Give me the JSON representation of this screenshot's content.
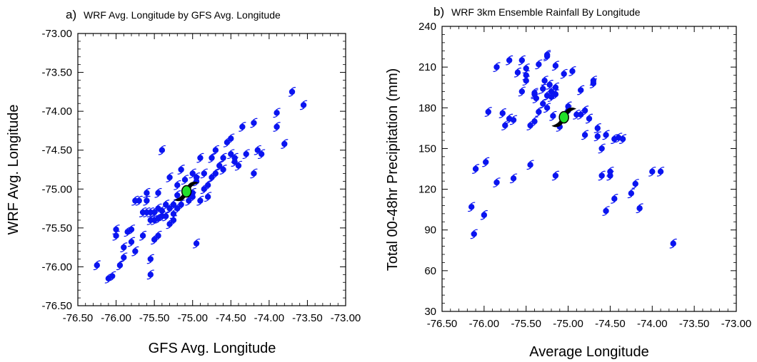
{
  "chart_data": [
    {
      "type": "scatter",
      "panel_label": "a)",
      "title": "WRF Avg. Longitude by GFS Avg. Longitude",
      "xlabel": "GFS Avg. Longitude",
      "ylabel": "WRF Avg. Longitude",
      "xlim": [
        -76.5,
        -73.0
      ],
      "ylim": [
        -76.5,
        -73.0
      ],
      "xticks": [
        "-76.50",
        "-76.00",
        "-75.50",
        "-75.00",
        "-74.50",
        "-74.00",
        "-73.50",
        "-73.00"
      ],
      "yticks": [
        "-76.50",
        "-76.00",
        "-75.50",
        "-75.00",
        "-74.50",
        "-74.00",
        "-73.50",
        "-73.00"
      ],
      "marker_color": "#0a14f0",
      "highlight": {
        "x": -75.08,
        "y": -75.03,
        "color": "#22e02a"
      },
      "x": [
        -76.25,
        -76.1,
        -76.05,
        -76.0,
        -76.0,
        -75.95,
        -75.9,
        -75.9,
        -75.85,
        -75.8,
        -75.8,
        -75.75,
        -75.75,
        -75.7,
        -75.65,
        -75.6,
        -75.6,
        -75.55,
        -75.55,
        -75.55,
        -75.5,
        -75.5,
        -75.5,
        -75.45,
        -75.45,
        -75.45,
        -75.4,
        -75.4,
        -75.4,
        -75.35,
        -75.3,
        -75.3,
        -75.3,
        -75.25,
        -75.25,
        -75.2,
        -75.2,
        -75.2,
        -75.15,
        -75.1,
        -75.05,
        -75.0,
        -75.0,
        -74.95,
        -74.95,
        -74.9,
        -74.9,
        -74.85,
        -74.85,
        -74.8,
        -74.8,
        -74.75,
        -74.75,
        -74.7,
        -74.7,
        -74.65,
        -74.6,
        -74.6,
        -74.55,
        -74.5,
        -74.5,
        -74.45,
        -74.45,
        -74.4,
        -74.35,
        -74.3,
        -74.2,
        -74.2,
        -74.15,
        -74.1,
        -73.9,
        -73.9,
        -73.8,
        -73.7,
        -73.55,
        -75.6,
        -75.35,
        -75.0,
        -74.95,
        -75.15,
        -75.55,
        -75.45,
        -75.65,
        -75.25
      ],
      "y": [
        -75.98,
        -76.15,
        -76.12,
        -75.6,
        -75.52,
        -75.98,
        -75.88,
        -75.75,
        -75.55,
        -75.68,
        -75.52,
        -75.15,
        -75.8,
        -75.15,
        -75.3,
        -75.15,
        -75.3,
        -75.4,
        -75.3,
        -76.1,
        -75.3,
        -75.4,
        -75.65,
        -75.25,
        -75.38,
        -75.6,
        -75.28,
        -75.35,
        -74.5,
        -75.35,
        -75.45,
        -75.25,
        -74.85,
        -75.2,
        -75.32,
        -75.08,
        -74.95,
        -75.25,
        -75.2,
        -74.88,
        -75.15,
        -74.8,
        -75.05,
        -74.85,
        -75.7,
        -74.6,
        -75.15,
        -75.0,
        -74.8,
        -74.95,
        -75.1,
        -74.85,
        -74.6,
        -74.5,
        -74.8,
        -74.7,
        -74.6,
        -74.75,
        -74.4,
        -74.35,
        -74.55,
        -74.6,
        -74.65,
        -74.7,
        -74.2,
        -74.55,
        -74.15,
        -74.8,
        -74.5,
        -74.55,
        -74.02,
        -74.2,
        -74.42,
        -73.75,
        -73.92,
        -75.05,
        -75.2,
        -75.1,
        -74.9,
        -74.75,
        -75.9,
        -75.05,
        -75.6,
        -75.4
      ]
    },
    {
      "type": "scatter",
      "panel_label": "b)",
      "title": "WRF 3km Ensemble Rainfall By Longitude",
      "xlabel": "Average Longitude",
      "ylabel": "Total 00-48hr Precipitation (mm)",
      "xlim": [
        -76.5,
        -73.0
      ],
      "ylim": [
        30,
        240
      ],
      "xticks": [
        "-76.50",
        "-76.00",
        "-75.50",
        "-75.00",
        "-74.50",
        "-74.00",
        "-73.50",
        "-73.00"
      ],
      "yticks": [
        "30",
        "60",
        "90",
        "120",
        "150",
        "180",
        "210",
        "240"
      ],
      "marker_color": "#0a14f0",
      "highlight": {
        "x": -75.05,
        "y": 173,
        "color": "#22e02a"
      },
      "x": [
        -76.15,
        -76.12,
        -76.1,
        -76.0,
        -75.98,
        -75.95,
        -75.85,
        -75.78,
        -75.75,
        -75.7,
        -75.65,
        -75.65,
        -75.6,
        -75.55,
        -75.55,
        -75.5,
        -75.5,
        -75.45,
        -75.45,
        -75.4,
        -75.4,
        -75.38,
        -75.35,
        -75.35,
        -75.3,
        -75.3,
        -75.28,
        -75.25,
        -75.25,
        -75.22,
        -75.2,
        -75.2,
        -75.18,
        -75.15,
        -75.15,
        -75.1,
        -75.05,
        -75.0,
        -75.0,
        -74.95,
        -74.9,
        -74.85,
        -74.85,
        -74.8,
        -74.8,
        -74.75,
        -74.7,
        -74.7,
        -74.65,
        -74.65,
        -74.6,
        -74.6,
        -74.55,
        -74.55,
        -74.5,
        -74.5,
        -74.45,
        -74.45,
        -74.4,
        -74.35,
        -74.25,
        -74.2,
        -74.15,
        -74.0,
        -73.9,
        -73.75,
        -75.4,
        -75.25,
        -75.15,
        -75.85,
        -75.7,
        -75.25,
        -75.5,
        -75.15
      ],
      "y": [
        107,
        87,
        135,
        101,
        140,
        177,
        125,
        176,
        167,
        172,
        171,
        128,
        206,
        215,
        192,
        209,
        204,
        167,
        138,
        170,
        191,
        187,
        177,
        212,
        183,
        194,
        200,
        180,
        218,
        197,
        192,
        188,
        174,
        211,
        130,
        166,
        205,
        181,
        178,
        207,
        175,
        193,
        175,
        160,
        178,
        172,
        200,
        198,
        159,
        165,
        130,
        150,
        104,
        160,
        130,
        133,
        113,
        157,
        158,
        157,
        117,
        124,
        106,
        133,
        133,
        80,
        190,
        189,
        195,
        210,
        215,
        219,
        200,
        190
      ]
    }
  ]
}
